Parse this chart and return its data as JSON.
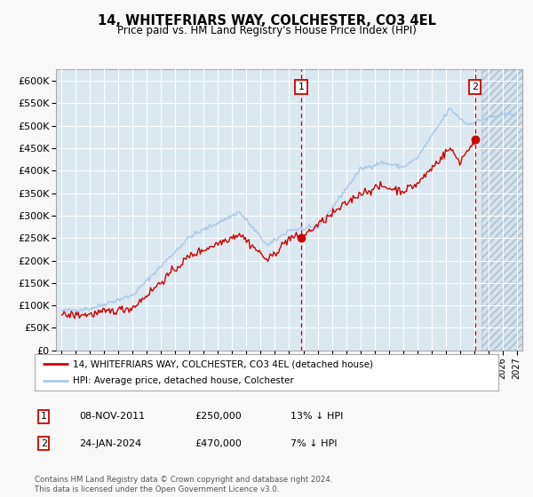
{
  "title": "14, WHITEFRIARS WAY, COLCHESTER, CO3 4EL",
  "subtitle": "Price paid vs. HM Land Registry's House Price Index (HPI)",
  "ylabel_ticks": [
    "£0",
    "£50K",
    "£100K",
    "£150K",
    "£200K",
    "£250K",
    "£300K",
    "£350K",
    "£400K",
    "£450K",
    "£500K",
    "£550K",
    "£600K"
  ],
  "ytick_values": [
    0,
    50000,
    100000,
    150000,
    200000,
    250000,
    300000,
    350000,
    400000,
    450000,
    500000,
    550000,
    600000
  ],
  "ylim": [
    0,
    625000
  ],
  "xlim_start": 1994.6,
  "xlim_end": 2027.4,
  "hpi_color": "#a8c8e8",
  "price_color": "#cc0000",
  "marker1_date": 2011.85,
  "marker1_price": 250000,
  "marker2_date": 2024.07,
  "marker2_price": 470000,
  "legend_line1": "14, WHITEFRIARS WAY, COLCHESTER, CO3 4EL (detached house)",
  "legend_line2": "HPI: Average price, detached house, Colchester",
  "table_row1": [
    "1",
    "08-NOV-2011",
    "£250,000",
    "13% ↓ HPI"
  ],
  "table_row2": [
    "2",
    "24-JAN-2024",
    "£470,000",
    "7% ↓ HPI"
  ],
  "footer": "Contains HM Land Registry data © Crown copyright and database right 2024.\nThis data is licensed under the Open Government Licence v3.0.",
  "fig_bg_color": "#f8f8f8",
  "plot_bg_color": "#dce8f0",
  "grid_color": "#ffffff",
  "hatch_region_start": 2024.5,
  "hpi_start": 1995.0,
  "hpi_end": 2027.0,
  "price_line_end": 2024.1
}
